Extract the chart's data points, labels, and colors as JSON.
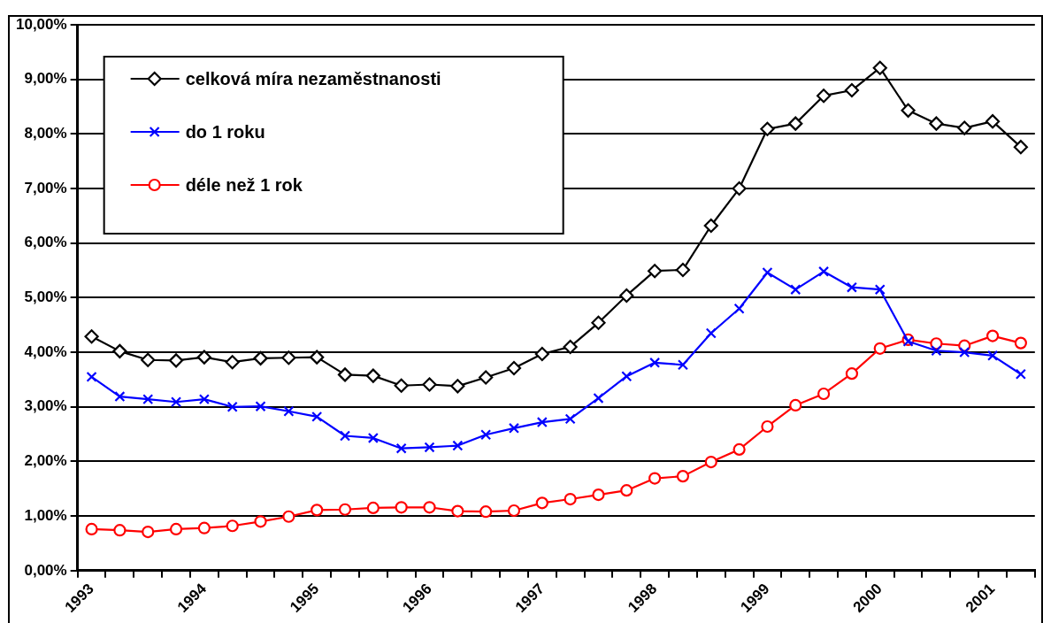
{
  "chart_data": {
    "type": "line",
    "categories": [
      "1993",
      null,
      null,
      null,
      "1994",
      null,
      null,
      null,
      "1995",
      null,
      null,
      null,
      "1996",
      null,
      null,
      null,
      "1997",
      null,
      null,
      null,
      "1998",
      null,
      null,
      null,
      "1999",
      null,
      null,
      null,
      "2000",
      null,
      null,
      null,
      "2001",
      null
    ],
    "series": [
      {
        "name": "celková míra nezaměstnanosti",
        "color": "#000000",
        "marker": "diamond",
        "values": [
          4.29,
          4.02,
          3.86,
          3.85,
          3.91,
          3.82,
          3.89,
          3.9,
          3.91,
          3.59,
          3.57,
          3.39,
          3.41,
          3.38,
          3.54,
          3.71,
          3.97,
          4.1,
          4.54,
          5.04,
          5.49,
          5.51,
          6.32,
          7.0,
          8.09,
          8.19,
          8.7,
          8.8,
          9.21,
          8.43,
          8.19,
          8.11,
          8.23,
          7.76
        ]
      },
      {
        "name": "do 1 roku",
        "color": "#0000ff",
        "marker": "cross",
        "values": [
          3.55,
          3.19,
          3.14,
          3.09,
          3.14,
          3.0,
          3.01,
          2.92,
          2.82,
          2.47,
          2.43,
          2.24,
          2.26,
          2.29,
          2.49,
          2.61,
          2.72,
          2.78,
          3.16,
          3.56,
          3.81,
          3.77,
          4.35,
          4.8,
          5.46,
          5.15,
          5.48,
          5.19,
          5.15,
          4.2,
          4.03,
          4.0,
          3.94,
          3.6
        ]
      },
      {
        "name": "déle než 1 rok",
        "color": "#ff0000",
        "marker": "circle",
        "values": [
          0.76,
          0.74,
          0.71,
          0.76,
          0.78,
          0.82,
          0.9,
          0.99,
          1.11,
          1.12,
          1.15,
          1.16,
          1.16,
          1.09,
          1.08,
          1.1,
          1.24,
          1.31,
          1.39,
          1.47,
          1.69,
          1.73,
          1.99,
          2.22,
          2.64,
          3.03,
          3.24,
          3.61,
          4.07,
          4.23,
          4.16,
          4.12,
          4.3,
          4.17
        ]
      }
    ],
    "ylim": [
      0,
      10
    ],
    "yticks": [
      {
        "value": 0,
        "label": "0,00%"
      },
      {
        "value": 1,
        "label": "1,00%"
      },
      {
        "value": 2,
        "label": "2,00%"
      },
      {
        "value": 3,
        "label": "3,00%"
      },
      {
        "value": 4,
        "label": "4,00%"
      },
      {
        "value": 5,
        "label": "5,00%"
      },
      {
        "value": 6,
        "label": "6,00%"
      },
      {
        "value": 7,
        "label": "7,00%"
      },
      {
        "value": 8,
        "label": "8,00%"
      },
      {
        "value": 9,
        "label": "9,00%"
      },
      {
        "value": 10,
        "label": "10,00%"
      }
    ],
    "grid": "y",
    "legend": "top left",
    "line_style": "solid"
  }
}
